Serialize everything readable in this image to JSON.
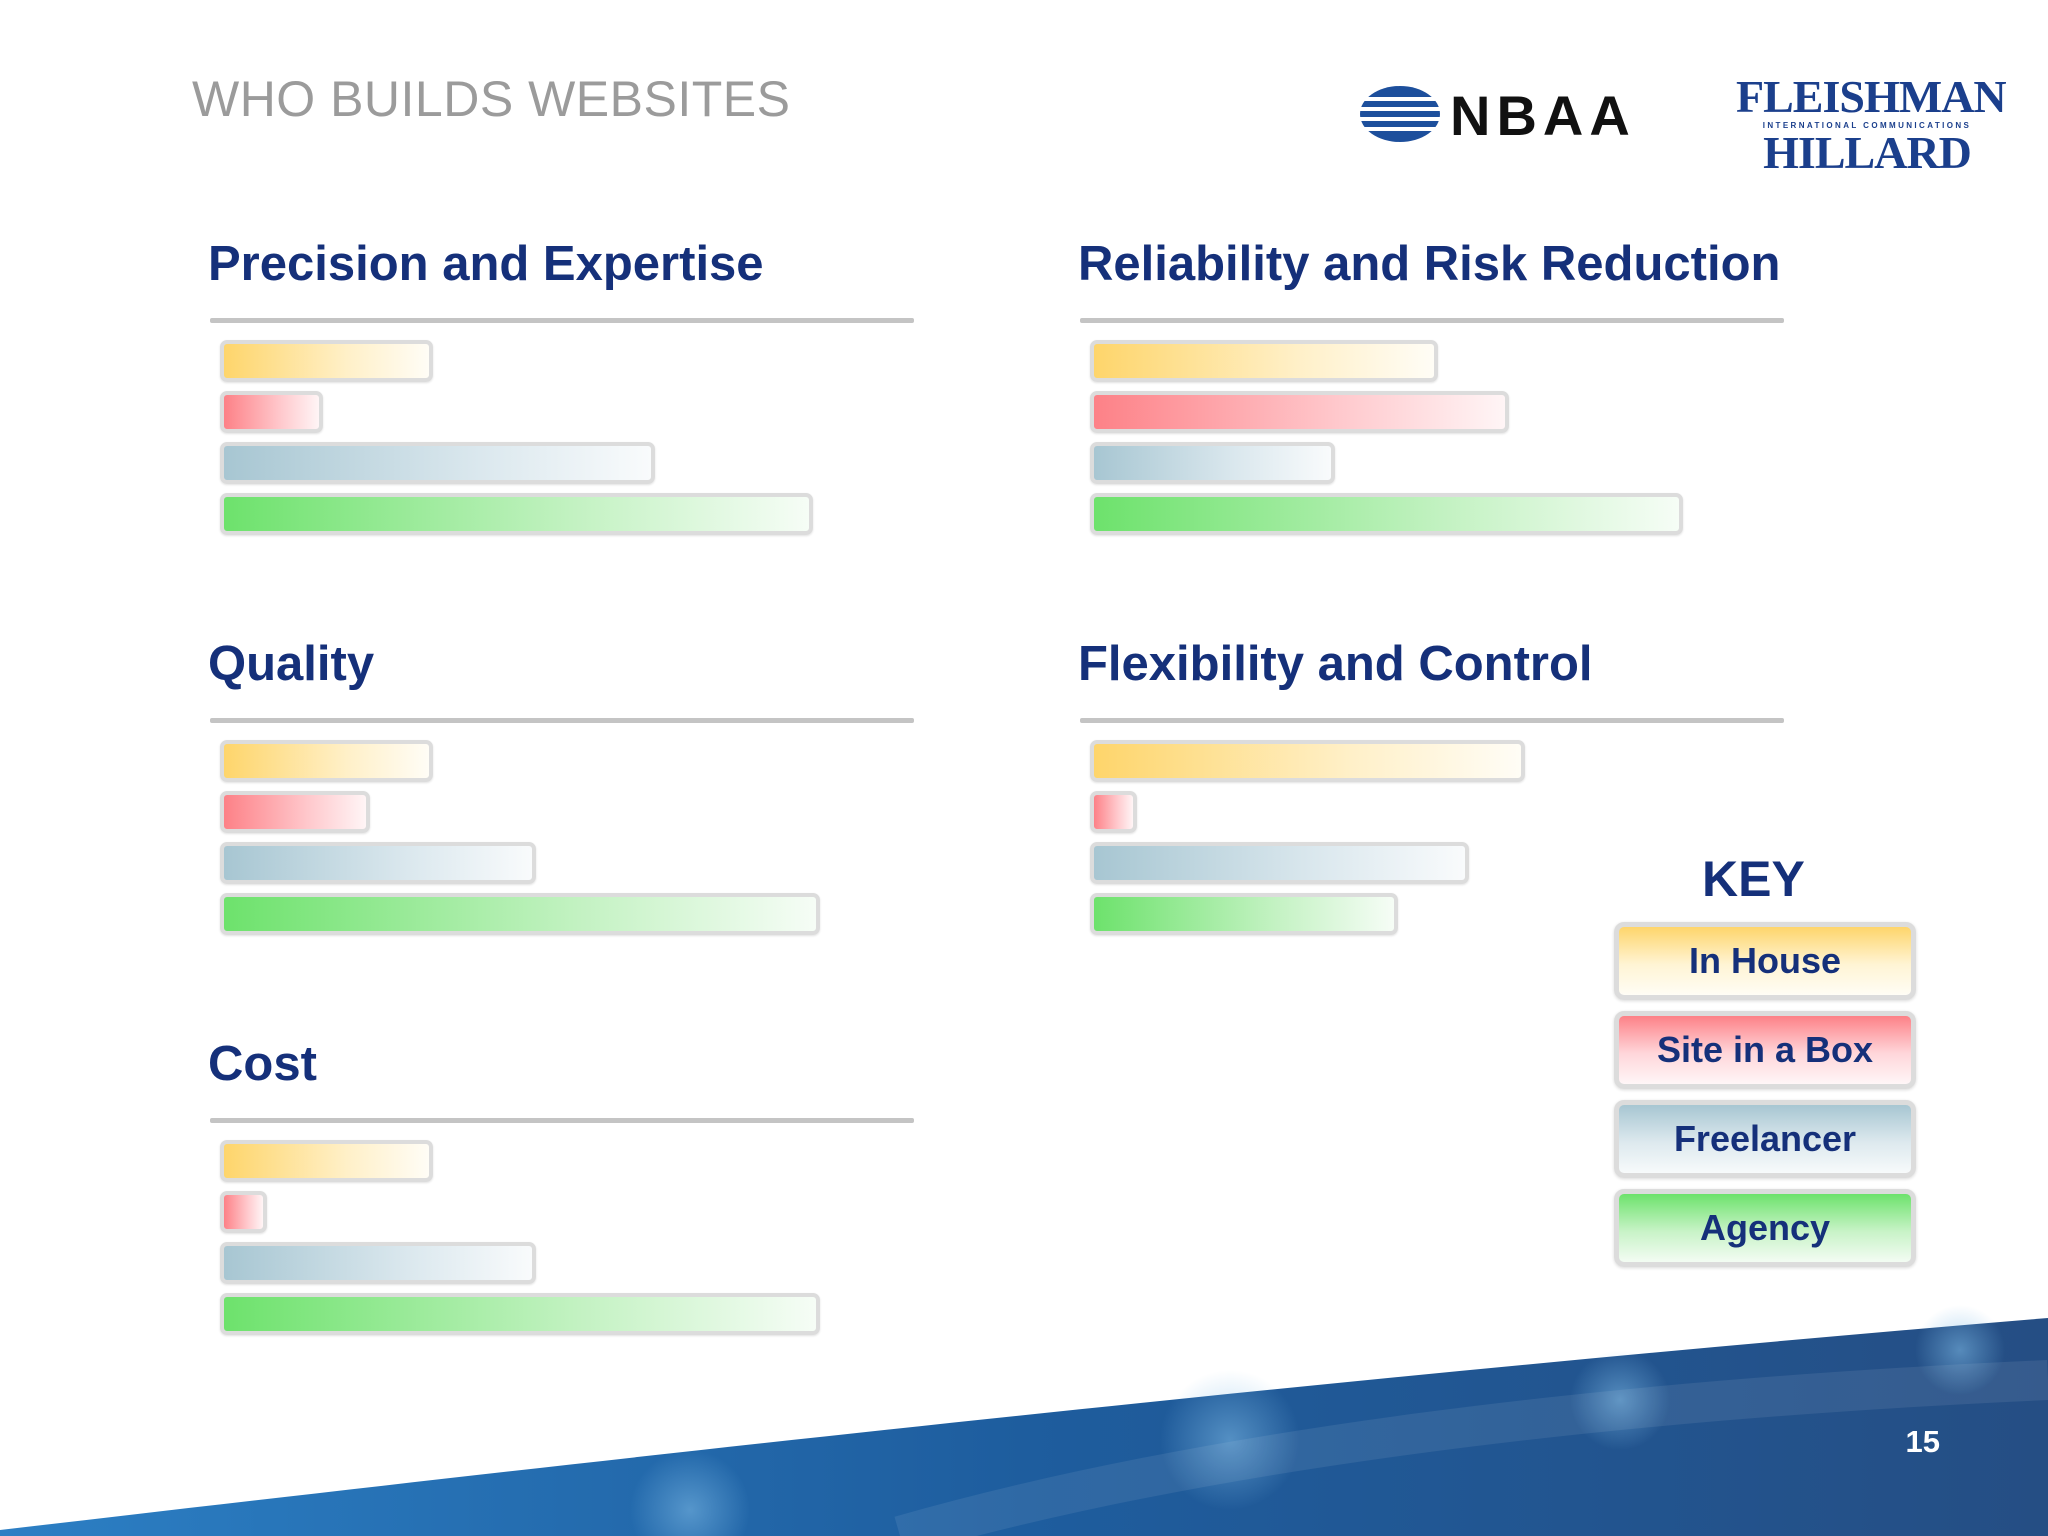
{
  "slide": {
    "title": "WHO BUILDS WEBSITES",
    "page_number": "15"
  },
  "logos": {
    "nbaa": "NBAA",
    "fleishman_top": "FLEISHMAN",
    "fleishman_mid": "INTERNATIONAL COMMUNICATIONS",
    "fleishman_bottom": "HILLARD"
  },
  "key": {
    "title": "KEY",
    "items": [
      "In House",
      "Site in a Box",
      "Freelancer",
      "Agency"
    ]
  },
  "colors": {
    "in_house": "#fed56b",
    "site_in_a_box": "#fd8187",
    "freelancer": "#a7c6d2",
    "agency": "#6de26c",
    "heading": "#15307a",
    "footer_blue": "#1d5aa0"
  },
  "chart_data": [
    {
      "type": "bar",
      "orientation": "horizontal",
      "title": "Precision and Expertise",
      "categories": [
        "In House",
        "Site in a Box",
        "Freelancer",
        "Agency"
      ],
      "values": [
        0.27,
        0.13,
        0.55,
        0.75
      ]
    },
    {
      "type": "bar",
      "orientation": "horizontal",
      "title": "Reliability and Risk Reduction",
      "categories": [
        "In House",
        "Site in a Box",
        "Freelancer",
        "Agency"
      ],
      "values": [
        0.44,
        0.53,
        0.31,
        0.75
      ]
    },
    {
      "type": "bar",
      "orientation": "horizontal",
      "title": "Quality",
      "categories": [
        "In House",
        "Site in a Box",
        "Freelancer",
        "Agency"
      ],
      "values": [
        0.27,
        0.19,
        0.4,
        0.76
      ]
    },
    {
      "type": "bar",
      "orientation": "horizontal",
      "title": "Flexibility and Control",
      "categories": [
        "In House",
        "Site in a Box",
        "Freelancer",
        "Agency"
      ],
      "values": [
        0.55,
        0.06,
        0.48,
        0.39
      ]
    },
    {
      "type": "bar",
      "orientation": "horizontal",
      "title": "Cost",
      "categories": [
        "In House",
        "Site in a Box",
        "Freelancer",
        "Agency"
      ],
      "values": [
        0.27,
        0.06,
        0.4,
        0.76
      ]
    }
  ]
}
